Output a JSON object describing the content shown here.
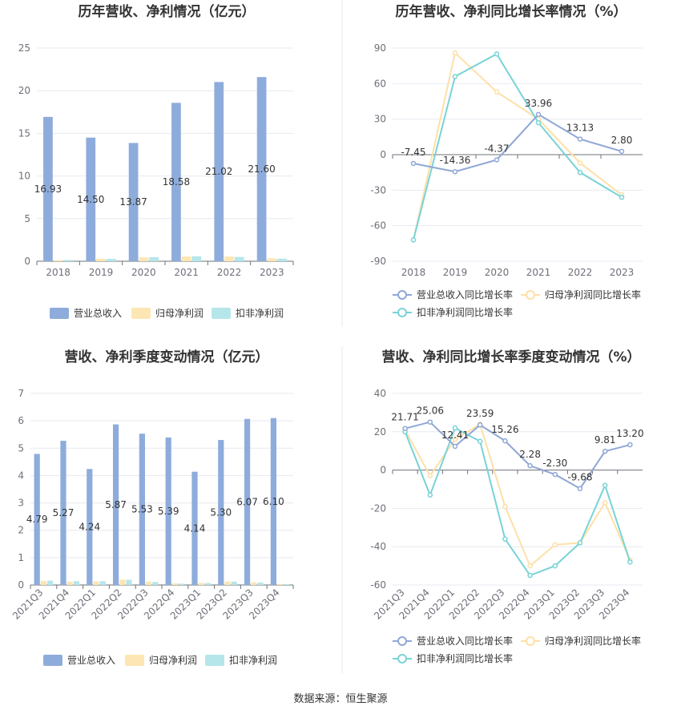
{
  "source": "数据来源：恒生聚源",
  "colors": {
    "revenue": "#8eacdb",
    "net": "#fde6b4",
    "deducted": "#b5e6ea",
    "revLine": "#8fa7d6",
    "netLine": "#fde0a8",
    "dedLine": "#79d3d6"
  },
  "chart_data": [
    {
      "type": "bar",
      "title": "历年营收、净利情况（亿元）",
      "categories": [
        "2018",
        "2019",
        "2020",
        "2021",
        "2022",
        "2023"
      ],
      "ylim": [
        0,
        25
      ],
      "yticks": [
        "0",
        "5",
        "10",
        "15",
        "20",
        "25"
      ],
      "series": [
        {
          "name": "营业总收入",
          "values": [
            16.93,
            14.5,
            13.87,
            18.58,
            21.02,
            21.6
          ],
          "labels": [
            "16.93",
            "14.50",
            "13.87",
            "18.58",
            "21.02",
            "21.60"
          ]
        },
        {
          "name": "归母净利润",
          "values": [
            0.12,
            0.3,
            0.45,
            0.55,
            0.55,
            0.35
          ]
        },
        {
          "name": "扣非净利润",
          "values": [
            0.15,
            0.28,
            0.48,
            0.58,
            0.5,
            0.3
          ]
        }
      ]
    },
    {
      "type": "line",
      "title": "历年营收、净利同比增长率情况（%）",
      "categories": [
        "2018",
        "2019",
        "2020",
        "2021",
        "2022",
        "2023"
      ],
      "ylim": [
        -90,
        90
      ],
      "yticks": [
        "-90",
        "-60",
        "-30",
        "0",
        "30",
        "60",
        "90"
      ],
      "series": [
        {
          "name": "营业总收入同比增长率",
          "values": [
            -7.45,
            -14.36,
            -4.37,
            33.96,
            13.13,
            2.8
          ],
          "labels": [
            "-7.45",
            "-14.36",
            "-4.37",
            "33.96",
            "13.13",
            "2.80"
          ]
        },
        {
          "name": "归母净利润同比增长率",
          "values": [
            -72,
            86,
            53,
            30,
            -7,
            -34
          ]
        },
        {
          "name": "扣非净利润同比增长率",
          "values": [
            -72,
            66,
            85,
            27,
            -15,
            -36
          ]
        }
      ]
    },
    {
      "type": "bar",
      "title": "营收、净利季度变动情况（亿元）",
      "categories": [
        "2021Q3",
        "2021Q4",
        "2022Q1",
        "2022Q2",
        "2022Q3",
        "2022Q4",
        "2023Q1",
        "2023Q2",
        "2023Q3",
        "2023Q4"
      ],
      "ylim": [
        0,
        7
      ],
      "yticks": [
        "0",
        "1",
        "2",
        "3",
        "4",
        "5",
        "6",
        "7"
      ],
      "series": [
        {
          "name": "营业总收入",
          "values": [
            4.79,
            5.27,
            4.24,
            5.87,
            5.53,
            5.39,
            4.14,
            5.3,
            6.07,
            6.1
          ],
          "labels": [
            "4.79",
            "5.27",
            "4.24",
            "5.87",
            "5.53",
            "5.39",
            "4.14",
            "5.30",
            "6.07",
            "6.10"
          ]
        },
        {
          "name": "归母净利润",
          "values": [
            0.15,
            0.12,
            0.13,
            0.2,
            0.12,
            0.06,
            0.08,
            0.13,
            0.1,
            0.04
          ]
        },
        {
          "name": "扣非净利润",
          "values": [
            0.16,
            0.14,
            0.14,
            0.19,
            0.11,
            0.05,
            0.07,
            0.12,
            0.09,
            0.03
          ]
        }
      ]
    },
    {
      "type": "line",
      "title": "营收、净利同比增长率季度变动情况（%）",
      "categories": [
        "2021Q3",
        "2021Q4",
        "2022Q1",
        "2022Q2",
        "2022Q3",
        "2022Q4",
        "2023Q1",
        "2023Q2",
        "2023Q3",
        "2023Q4"
      ],
      "ylim": [
        -60,
        40
      ],
      "yticks": [
        "-60",
        "-40",
        "-20",
        "0",
        "20",
        "40"
      ],
      "series": [
        {
          "name": "营业总收入同比增长率",
          "values": [
            21.71,
            25.06,
            12.41,
            23.59,
            15.26,
            2.28,
            -2.3,
            -9.68,
            9.81,
            13.2
          ],
          "labels": [
            "21.71",
            "25.06",
            "12.41",
            "23.59",
            "15.26",
            "2.28",
            "-2.30",
            "-9.68",
            "9.81",
            "13.20"
          ]
        },
        {
          "name": "归母净利润同比增长率",
          "values": [
            21,
            -3,
            16,
            24,
            -19,
            -50,
            -39,
            -38,
            -17,
            -47
          ]
        },
        {
          "name": "扣非净利润同比增长率",
          "values": [
            20,
            -13,
            22,
            15,
            -36,
            -55,
            -50,
            -38,
            -8,
            -48
          ]
        }
      ]
    }
  ]
}
